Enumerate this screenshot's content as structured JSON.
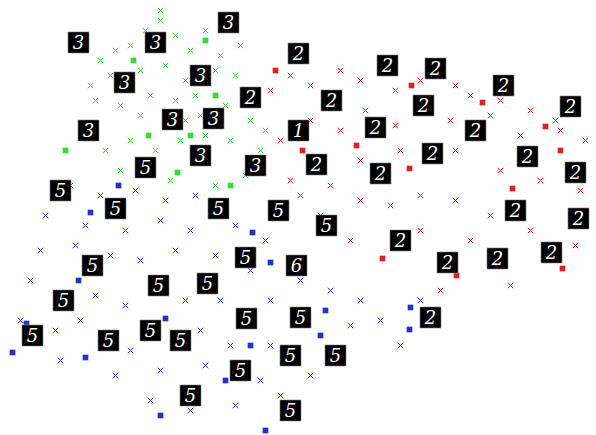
{
  "chart_data": {
    "type": "scatter",
    "tick_labels": false,
    "grid": false,
    "xlim": [
      0,
      596
    ],
    "ylim": [
      435,
      0
    ],
    "series": [
      {
        "color": "#33dd33",
        "marker": "x",
        "x": [
          100,
          115,
          130,
          145,
          160,
          175,
          190,
          205,
          220,
          240,
          110,
          140,
          165,
          185,
          215,
          235,
          95,
          120,
          150,
          175,
          195,
          225,
          250,
          105,
          130,
          155,
          180,
          205,
          230,
          265,
          120,
          170,
          215,
          245,
          160,
          140,
          185,
          260,
          90,
          200
        ],
        "y": [
          60,
          50,
          45,
          30,
          20,
          35,
          50,
          30,
          55,
          45,
          75,
          70,
          65,
          80,
          70,
          75,
          100,
          105,
          95,
          100,
          95,
          105,
          120,
          150,
          140,
          150,
          140,
          135,
          140,
          130,
          170,
          180,
          185,
          175,
          10,
          115,
          120,
          150,
          85,
          115
        ]
      },
      {
        "color": "#dd2222",
        "marker": "x",
        "x": [
          270,
          290,
          310,
          340,
          360,
          395,
          420,
          455,
          470,
          500,
          530,
          555,
          280,
          310,
          340,
          365,
          395,
          450,
          490,
          520,
          560,
          585,
          290,
          330,
          360,
          400,
          455,
          500,
          540,
          580,
          320,
          360,
          390,
          420,
          455,
          490,
          530,
          470,
          420,
          350,
          510,
          440,
          575,
          300
        ],
        "y": [
          90,
          75,
          85,
          70,
          80,
          90,
          80,
          85,
          95,
          100,
          110,
          120,
          140,
          120,
          130,
          110,
          125,
          120,
          115,
          135,
          130,
          140,
          180,
          185,
          160,
          150,
          150,
          170,
          180,
          190,
          215,
          200,
          205,
          195,
          200,
          215,
          230,
          240,
          230,
          240,
          285,
          290,
          245,
          195
        ]
      },
      {
        "color": "#2233cc",
        "marker": "x",
        "x": [
          70,
          100,
          135,
          165,
          195,
          45,
          85,
          125,
          160,
          190,
          235,
          265,
          40,
          75,
          110,
          140,
          175,
          215,
          250,
          300,
          30,
          60,
          95,
          125,
          185,
          220,
          270,
          330,
          360,
          380,
          20,
          55,
          80,
          130,
          200,
          230,
          270,
          350,
          400,
          60,
          115,
          160,
          205,
          260,
          310,
          190,
          235,
          280,
          150,
          420
        ],
        "y": [
          185,
          195,
          190,
          200,
          195,
          215,
          225,
          230,
          220,
          230,
          225,
          240,
          250,
          245,
          255,
          260,
          250,
          255,
          270,
          280,
          280,
          300,
          295,
          305,
          300,
          300,
          300,
          290,
          300,
          320,
          320,
          330,
          320,
          350,
          330,
          345,
          345,
          325,
          345,
          360,
          375,
          370,
          365,
          380,
          375,
          410,
          405,
          395,
          400,
          300
        ]
      },
      {
        "color": "#33dd33",
        "marker": "square",
        "x": [
          205,
          133,
          65,
          148,
          190,
          177,
          230,
          215
        ],
        "y": [
          40,
          60,
          150,
          135,
          135,
          172,
          185,
          95
        ]
      },
      {
        "color": "#dd2222",
        "marker": "square",
        "x": [
          275,
          411,
          482,
          545,
          560,
          512,
          409,
          356,
          382,
          562,
          456,
          302
        ],
        "y": [
          70,
          85,
          102,
          126,
          150,
          188,
          168,
          145,
          258,
          268,
          275,
          150
        ]
      },
      {
        "color": "#2233cc",
        "marker": "square",
        "x": [
          118,
          90,
          252,
          78,
          63,
          26,
          12,
          85,
          165,
          270,
          250,
          320,
          409,
          410,
          160,
          265,
          225,
          325
        ],
        "y": [
          185,
          212,
          232,
          280,
          293,
          323,
          352,
          357,
          318,
          262,
          345,
          335,
          329,
          307,
          415,
          430,
          380,
          310
        ]
      }
    ],
    "thumbnails": [
      {
        "x": 78,
        "y": 42,
        "label": "3"
      },
      {
        "x": 155,
        "y": 42,
        "label": "3"
      },
      {
        "x": 228,
        "y": 22,
        "label": "3"
      },
      {
        "x": 124,
        "y": 82,
        "label": "3"
      },
      {
        "x": 200,
        "y": 75,
        "label": "3"
      },
      {
        "x": 250,
        "y": 97,
        "label": "2"
      },
      {
        "x": 298,
        "y": 53,
        "label": "2"
      },
      {
        "x": 387,
        "y": 65,
        "label": "2"
      },
      {
        "x": 435,
        "y": 68,
        "label": "2"
      },
      {
        "x": 503,
        "y": 85,
        "label": "2"
      },
      {
        "x": 570,
        "y": 106,
        "label": "2"
      },
      {
        "x": 331,
        "y": 100,
        "label": "2"
      },
      {
        "x": 375,
        "y": 127,
        "label": "2"
      },
      {
        "x": 423,
        "y": 105,
        "label": "2"
      },
      {
        "x": 475,
        "y": 130,
        "label": "2"
      },
      {
        "x": 527,
        "y": 156,
        "label": "2"
      },
      {
        "x": 575,
        "y": 172,
        "label": "2"
      },
      {
        "x": 432,
        "y": 153,
        "label": "2"
      },
      {
        "x": 380,
        "y": 173,
        "label": "2"
      },
      {
        "x": 316,
        "y": 164,
        "label": "2"
      },
      {
        "x": 298,
        "y": 130,
        "label": "1"
      },
      {
        "x": 172,
        "y": 119,
        "label": "3"
      },
      {
        "x": 213,
        "y": 118,
        "label": "3"
      },
      {
        "x": 88,
        "y": 130,
        "label": "3"
      },
      {
        "x": 200,
        "y": 155,
        "label": "3"
      },
      {
        "x": 145,
        "y": 167,
        "label": "5"
      },
      {
        "x": 255,
        "y": 165,
        "label": "3"
      },
      {
        "x": 60,
        "y": 190,
        "label": "5"
      },
      {
        "x": 115,
        "y": 208,
        "label": "5"
      },
      {
        "x": 218,
        "y": 208,
        "label": "5"
      },
      {
        "x": 278,
        "y": 210,
        "label": "5"
      },
      {
        "x": 326,
        "y": 225,
        "label": "5"
      },
      {
        "x": 400,
        "y": 240,
        "label": "2"
      },
      {
        "x": 447,
        "y": 262,
        "label": "2"
      },
      {
        "x": 497,
        "y": 258,
        "label": "2"
      },
      {
        "x": 551,
        "y": 252,
        "label": "2"
      },
      {
        "x": 515,
        "y": 210,
        "label": "2"
      },
      {
        "x": 578,
        "y": 218,
        "label": "2"
      },
      {
        "x": 245,
        "y": 257,
        "label": "5"
      },
      {
        "x": 296,
        "y": 265,
        "label": "6"
      },
      {
        "x": 92,
        "y": 265,
        "label": "5"
      },
      {
        "x": 158,
        "y": 285,
        "label": "5"
      },
      {
        "x": 207,
        "y": 283,
        "label": "5"
      },
      {
        "x": 63,
        "y": 300,
        "label": "5"
      },
      {
        "x": 32,
        "y": 335,
        "label": "5"
      },
      {
        "x": 108,
        "y": 340,
        "label": "5"
      },
      {
        "x": 150,
        "y": 330,
        "label": "5"
      },
      {
        "x": 180,
        "y": 340,
        "label": "5"
      },
      {
        "x": 246,
        "y": 318,
        "label": "5"
      },
      {
        "x": 300,
        "y": 317,
        "label": "5"
      },
      {
        "x": 430,
        "y": 317,
        "label": "2"
      },
      {
        "x": 240,
        "y": 370,
        "label": "5"
      },
      {
        "x": 290,
        "y": 355,
        "label": "5"
      },
      {
        "x": 335,
        "y": 355,
        "label": "5"
      },
      {
        "x": 190,
        "y": 395,
        "label": "5"
      },
      {
        "x": 290,
        "y": 410,
        "label": "5"
      }
    ]
  }
}
